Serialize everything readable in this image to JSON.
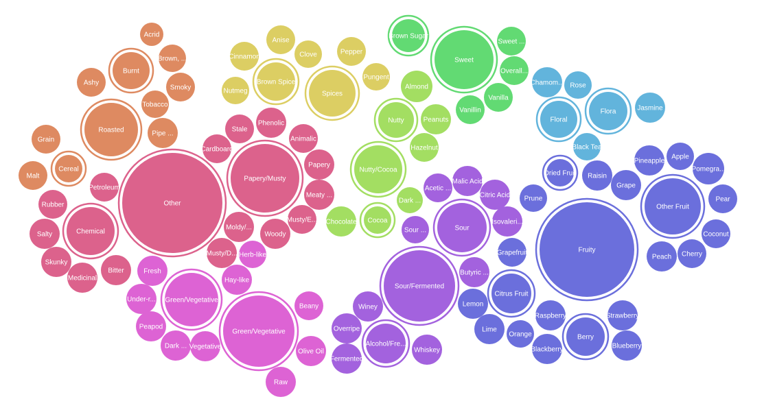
{
  "chart_data": {
    "type": "packed-bubble",
    "title": "",
    "colors": {
      "orange": "#DE8A61",
      "yellow": "#DCCE63",
      "green": "#62DA73",
      "lime": "#A3DE62",
      "blue": "#62B4DC",
      "indigo": "#6B6FDC",
      "violet": "#A362DE",
      "pink": "#DD63D4",
      "rose": "#DC628C"
    },
    "groups": [
      {
        "color": "orange",
        "parents": [
          {
            "name": "Burnt",
            "value": 4,
            "children": [
              "Acrid",
              "Brown, ...",
              "Smoky",
              "Ashy",
              "Tobacco"
            ]
          },
          {
            "name": "Roasted",
            "value": 9,
            "children": [
              "Pipe ..."
            ]
          },
          {
            "name": "Cereal",
            "value": 4,
            "children": [
              "Grain",
              "Malt"
            ]
          }
        ]
      },
      {
        "color": "yellow",
        "parents": [
          {
            "name": "Brown Spice",
            "value": 4,
            "children": [
              "Anise",
              "Clove",
              "Cinnamon",
              "Nutmeg"
            ]
          },
          {
            "name": "Spices",
            "value": 6,
            "children": [
              "Pepper",
              "Pungent"
            ]
          }
        ]
      },
      {
        "color": "green",
        "parents": [
          {
            "name": "Brown Sugar",
            "value": 3,
            "children": []
          },
          {
            "name": "Sweet",
            "value": 9,
            "children": [
              "Sweet ...",
              "Overall...",
              "Vanilla",
              "Vanillin"
            ]
          }
        ]
      },
      {
        "color": "lime",
        "parents": [
          {
            "name": "Nutty",
            "value": 3,
            "children": [
              "Almond",
              "Peanuts",
              "Hazelnut"
            ]
          },
          {
            "name": "Nutty/Cocoa",
            "value": 5,
            "children": []
          },
          {
            "name": "Cocoa",
            "value": 2,
            "children": [
              "Dark ...",
              "Chocolate"
            ]
          }
        ]
      },
      {
        "color": "blue",
        "parents": [
          {
            "name": "Floral",
            "value": 4,
            "children": [
              "Chamom...",
              "Rose"
            ]
          },
          {
            "name": "Flora",
            "value": 4,
            "children": [
              "Jasmine",
              "Black Tea"
            ]
          }
        ]
      },
      {
        "color": "indigo",
        "parents": [
          {
            "name": "Dried Fruit",
            "value": 2,
            "children": [
              "Raisin",
              "Prune"
            ]
          },
          {
            "name": "Other Fruit",
            "value": 6,
            "children": [
              "Pineapple",
              "Apple",
              "Pomegra...",
              "Pear",
              "Coconut",
              "Grape",
              "Cherry",
              "Peach"
            ]
          },
          {
            "name": "Fruity",
            "value": 28,
            "children": [
              "Grapefruit"
            ]
          },
          {
            "name": "Citrus Fruit",
            "value": 4,
            "children": [
              "Lemon",
              "Lime",
              "Orange"
            ]
          },
          {
            "name": "Berry",
            "value": 4,
            "children": [
              "Raspberry",
              "Strawberry",
              "Blackberry",
              "Blueberry"
            ]
          }
        ]
      },
      {
        "color": "violet",
        "parents": [
          {
            "name": "Sour",
            "value": 6,
            "children": [
              "Acetic ...",
              "Malic Acid",
              "Citric Acid",
              "Isovaleri...",
              "Sour ...",
              "Butyric ..."
            ]
          },
          {
            "name": "Sour/Fermented",
            "value": 12,
            "children": [
              "Winey"
            ]
          },
          {
            "name": "Alcohol/Fre...",
            "value": 3,
            "children": [
              "Overripe",
              "Fermented",
              "Whiskey"
            ]
          }
        ]
      },
      {
        "color": "pink",
        "parents": [
          {
            "name": "Green/Vegetative",
            "value": 6,
            "children": [
              "Fresh",
              "Under-r...",
              "Peapod",
              "Dark ...",
              "Vegetative"
            ]
          },
          {
            "name": "Green/Vegetative",
            "value": 10,
            "children": [
              "Hay-like",
              "Herb-like",
              "Beany",
              "Olive Oil",
              "Raw"
            ]
          }
        ]
      },
      {
        "color": "rose",
        "parents": [
          {
            "name": "Chemical",
            "value": 6,
            "children": [
              "Petroleum",
              "Rubber",
              "Salty",
              "Skunky",
              "Medicinal",
              "Bitter"
            ]
          },
          {
            "name": "Other",
            "value": 16,
            "children": []
          },
          {
            "name": "Papery/Musty",
            "value": 9,
            "children": [
              "Stale",
              "Phenolic",
              "Cardboard",
              "Animalic",
              "Papery",
              "Meaty ...",
              "Musty/E...",
              "Woody",
              "Moldy/...",
              "Musty/D..."
            ]
          }
        ]
      }
    ]
  }
}
